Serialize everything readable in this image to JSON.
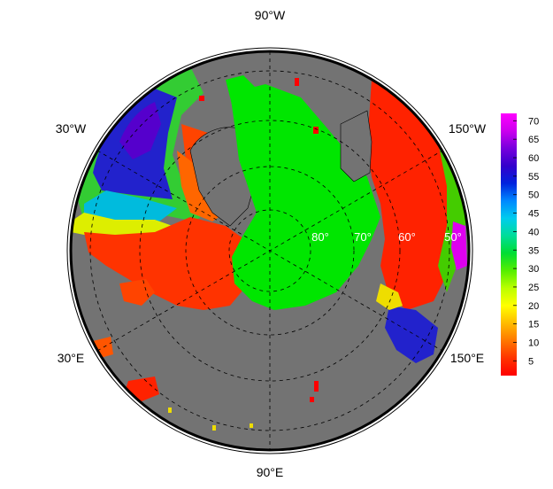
{
  "map": {
    "projection": "north-polar-stereographic",
    "colors": {
      "land": "#737373",
      "coast": "#000000",
      "outer_ring": "#000000",
      "graticule": "#000000",
      "central_ice": "#00e600"
    },
    "longitude_labels": [
      {
        "text": "90°W",
        "position": "top"
      },
      {
        "text": "30°W",
        "position": "upper-left"
      },
      {
        "text": "150°W",
        "position": "upper-right"
      },
      {
        "text": "30°E",
        "position": "lower-left"
      },
      {
        "text": "150°E",
        "position": "lower-right"
      },
      {
        "text": "90°E",
        "position": "bottom"
      }
    ],
    "latitude_labels": [
      {
        "text": "80°",
        "lat": 80
      },
      {
        "text": "70°",
        "lat": 70
      },
      {
        "text": "60°",
        "lat": 60
      },
      {
        "text": "50°",
        "lat": 50
      }
    ]
  },
  "colorbar": {
    "ticks": [
      70,
      65,
      60,
      55,
      50,
      45,
      40,
      35,
      30,
      25,
      20,
      15,
      10,
      5
    ],
    "min": 1,
    "max": 72,
    "colors": [
      "#ff0000",
      "#ff3300",
      "#ff7700",
      "#ffbb00",
      "#ffff00",
      "#bbff00",
      "#55ee00",
      "#00dd33",
      "#00dd99",
      "#00ccee",
      "#0088ff",
      "#0022dd",
      "#3300cc",
      "#7700dd",
      "#cc00ee",
      "#ff00ff"
    ]
  }
}
